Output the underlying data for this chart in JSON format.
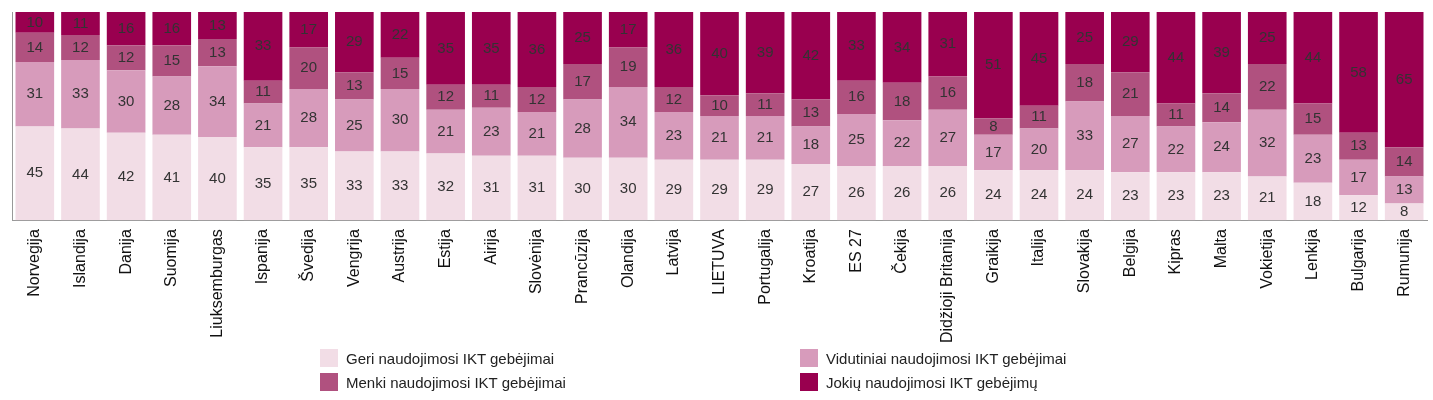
{
  "chart_data": {
    "type": "bar",
    "stacked": true,
    "data_labels": true,
    "legend": "bottom",
    "grid": false,
    "tick_labels": "x",
    "ylim": [
      0,
      100
    ],
    "categories": [
      "Norvegija",
      "Islandija",
      "Danija",
      "Suomija",
      "Liuksemburgas",
      "Ispanija",
      "Švedija",
      "Vengrija",
      "Austrija",
      "Estija",
      "Airija",
      "Slovėnija",
      "Prancūzija",
      "Olandija",
      "Latvija",
      "LIETUVA",
      "Portugalija",
      "Kroatija",
      "ES 27",
      "Čekija",
      "Didžioji Britanija",
      "Graikija",
      "Italija",
      "Slovakija",
      "Belgija",
      "Kipras",
      "Malta",
      "Vokietija",
      "Lenkija",
      "Bulgarija",
      "Rumunija"
    ],
    "series": [
      {
        "name": "Geri naudojimosi IKT gebėjimai",
        "color": "#f2dde6",
        "values": [
          45,
          44,
          42,
          41,
          40,
          35,
          35,
          33,
          33,
          32,
          31,
          31,
          30,
          30,
          29,
          29,
          29,
          27,
          26,
          26,
          26,
          24,
          24,
          24,
          23,
          23,
          23,
          21,
          18,
          12,
          8
        ]
      },
      {
        "name": "Vidutiniai naudojimosi IKT gebėjimai",
        "color": "#d79bbb",
        "values": [
          31,
          33,
          30,
          28,
          34,
          21,
          28,
          25,
          30,
          21,
          23,
          21,
          28,
          34,
          23,
          21,
          21,
          18,
          25,
          22,
          27,
          17,
          20,
          33,
          27,
          22,
          24,
          32,
          23,
          17,
          13
        ]
      },
      {
        "name": "Menki naudojimosi IKT gebėjimai",
        "color": "#b0517f",
        "values": [
          14,
          12,
          12,
          15,
          13,
          11,
          20,
          13,
          15,
          12,
          11,
          12,
          17,
          19,
          12,
          10,
          11,
          13,
          16,
          18,
          16,
          8,
          11,
          18,
          21,
          11,
          14,
          22,
          15,
          13,
          14
        ]
      },
      {
        "name": "Jokių naudojimosi IKT gebėjimų",
        "color": "#99004f",
        "values": [
          10,
          11,
          16,
          16,
          13,
          33,
          17,
          29,
          22,
          35,
          35,
          36,
          25,
          17,
          36,
          40,
          39,
          42,
          33,
          34,
          31,
          51,
          45,
          25,
          29,
          44,
          39,
          25,
          44,
          58,
          65
        ]
      }
    ]
  }
}
